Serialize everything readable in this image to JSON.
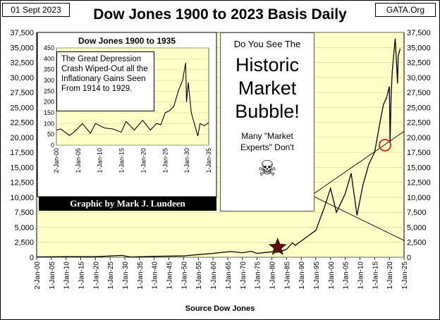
{
  "header": {
    "date": "01 Sept 2023",
    "title": "Dow Jones 1900 to 2023 Basis Daily",
    "source_site": "GATA.Org"
  },
  "bubble": {
    "question": "Do You See The",
    "headline_1": "Historic",
    "headline_2": "Market",
    "headline_3": "Bubble!",
    "note_1": "Many \"Market",
    "note_2": "Experts\"  Don't",
    "skull_glyph": "☠"
  },
  "credit": "Graphic by Mark J. Lundeen",
  "inset_note": "The Great Depression Crash Wiped-Out all the Inflationary Gains Seen From 1914 to 1929.",
  "footer": {
    "xlabel": "Source Dow Jones"
  },
  "colors": {
    "plot_bg": "#ffffc8",
    "line": "#000000",
    "star": "#5a1010",
    "circle": "#e02020",
    "credit_bg": "#000000"
  },
  "chart_data": [
    {
      "type": "line",
      "title": "Dow Jones 1900 to 2023 Basis Daily",
      "xlabel": "Source Dow Jones",
      "ylabel": "",
      "x_range": [
        1900,
        2025
      ],
      "ylim": [
        0,
        37500
      ],
      "y_ticks": [
        0,
        2500,
        5000,
        7500,
        10000,
        12500,
        15000,
        17500,
        20000,
        22500,
        25000,
        27500,
        30000,
        32500,
        35000,
        37500
      ],
      "y_tick_labels": [
        "0",
        "2,500",
        "5,000",
        "7,500",
        "10,000",
        "12,500",
        "15,000",
        "17,500",
        "20,000",
        "22,500",
        "25,000",
        "27,500",
        "30,000",
        "32,500",
        "35,000",
        "37,500"
      ],
      "x_ticks": [
        1900,
        1905,
        1910,
        1915,
        1920,
        1925,
        1930,
        1935,
        1940,
        1945,
        1950,
        1955,
        1960,
        1965,
        1970,
        1975,
        1980,
        1985,
        1990,
        1995,
        2000,
        2005,
        2010,
        2015,
        2020,
        2025
      ],
      "x_tick_labels": [
        "2-Jan-00",
        "1-Jan-05",
        "1-Jan-10",
        "1-Jan-15",
        "1-Jan-20",
        "1-Jan-25",
        "1-Jan-30",
        "1-Jan-35",
        "1-Jan-40",
        "1-Jan-45",
        "1-Jan-50",
        "1-Jan-55",
        "1-Jan-60",
        "1-Jan-65",
        "1-Jan-70",
        "1-Jan-75",
        "1-Jan-80",
        "1-Jan-85",
        "1-Jan-90",
        "1-Jan-95",
        "1-Jan-00",
        "1-Jan-05",
        "1-Jan-10",
        "1-Jan-15",
        "1-Jan-20",
        "1-Jan-25"
      ],
      "series": [
        {
          "name": "Dow Jones",
          "x": [
            1900,
            1910,
            1920,
            1929,
            1932,
            1940,
            1950,
            1955,
            1960,
            1966,
            1970,
            1973,
            1975,
            1980,
            1982,
            1985,
            1987,
            1988,
            1990,
            1995,
            1998,
            2000,
            2002,
            2003,
            2005,
            2007,
            2009,
            2011,
            2013,
            2015,
            2017,
            2018,
            2019,
            2020,
            2020.25,
            2020.6,
            2021,
            2022,
            2022.8,
            2023,
            2023.67
          ],
          "values": [
            60,
            90,
            90,
            300,
            50,
            150,
            220,
            450,
            650,
            950,
            750,
            1000,
            650,
            900,
            850,
            1300,
            2400,
            2000,
            2700,
            4500,
            8500,
            11500,
            7500,
            8500,
            10600,
            14000,
            7000,
            12000,
            15500,
            17500,
            23000,
            25500,
            26500,
            28500,
            19000,
            27000,
            31000,
            36500,
            29000,
            33500,
            34800
          ]
        }
      ],
      "annotations": [
        {
          "type": "star",
          "x": 1982,
          "y": 1200
        },
        {
          "type": "circle",
          "x": 2018.5,
          "y": 18700
        },
        {
          "type": "trendline",
          "x": [
            1994,
            2025
          ],
          "y": [
            10500,
            21000
          ]
        },
        {
          "type": "trendline",
          "x": [
            1994,
            2025
          ],
          "y": [
            10200,
            2800
          ]
        }
      ]
    },
    {
      "type": "line",
      "title": "Dow Jones 1900 to 1935",
      "ylim": [
        0,
        450
      ],
      "y_ticks": [
        0,
        50,
        100,
        150,
        200,
        250,
        300,
        350,
        400,
        450
      ],
      "y_tick_labels": [
        "0",
        "50",
        "100",
        "150",
        "200",
        "250",
        "300",
        "350",
        "400",
        "450"
      ],
      "x_range": [
        1900,
        1935
      ],
      "x_ticks": [
        1900,
        1905,
        1910,
        1915,
        1920,
        1925,
        1930,
        1935
      ],
      "x_tick_labels": [
        "2-Jan-00",
        "1-Jan-05",
        "1-Jan-10",
        "1-Jan-15",
        "1-Jan-20",
        "1-Jan-25",
        "1-Jan-30",
        "1-Jan-35"
      ],
      "series": [
        {
          "name": "Dow Jones",
          "x": [
            1900,
            1901,
            1903,
            1904,
            1906,
            1907.8,
            1909,
            1911,
            1913,
            1914.9,
            1916,
            1917.9,
            1919.8,
            1921.6,
            1923,
            1924,
            1925,
            1926,
            1927,
            1928,
            1929,
            1929.7,
            1929.9,
            1930.3,
            1931,
            1932.5,
            1933,
            1934,
            1935
          ],
          "values": [
            70,
            75,
            45,
            60,
            100,
            55,
            100,
            80,
            75,
            60,
            110,
            70,
            115,
            70,
            100,
            95,
            150,
            160,
            180,
            250,
            300,
            381,
            200,
            290,
            150,
            42,
            100,
            90,
            105
          ]
        }
      ]
    }
  ]
}
